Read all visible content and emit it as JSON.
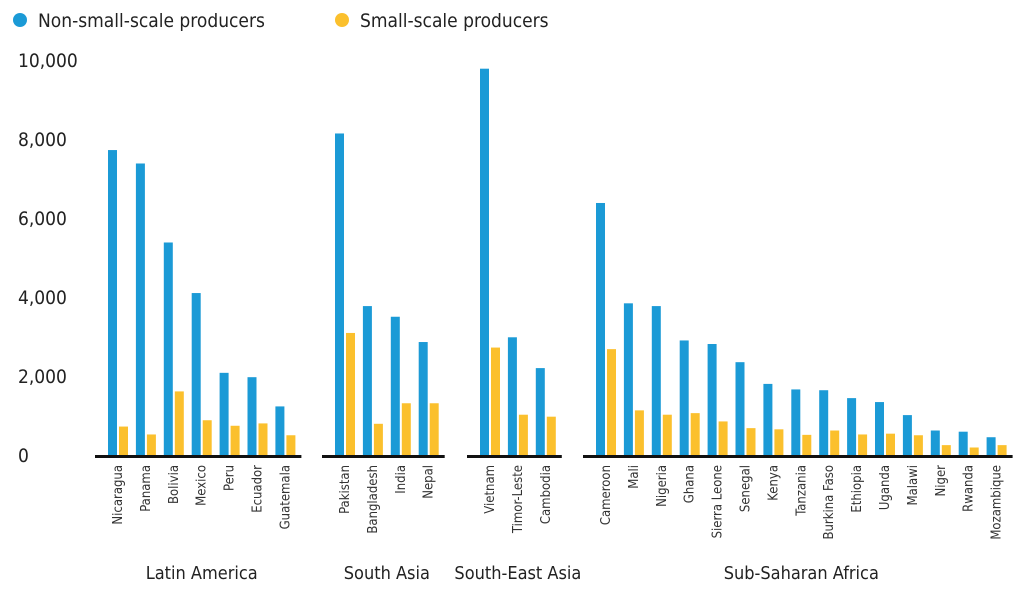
{
  "chart_data": {
    "type": "bar",
    "title": "",
    "xlabel": "",
    "ylabel": "",
    "ylim": [
      0,
      10000
    ],
    "yticks": [
      0,
      2000,
      4000,
      6000,
      8000,
      10000
    ],
    "ytick_labels": [
      "0",
      "2,000",
      "4,000",
      "6,000",
      "8,000",
      "10,000"
    ],
    "grid": false,
    "legend_position": "top-left",
    "series": [
      {
        "name": "Non-small-scale producers",
        "color": "#1b9ad6"
      },
      {
        "name": "Small-scale producers",
        "color": "#fbc02d"
      }
    ],
    "groups": [
      {
        "name": "Latin America",
        "categories": [
          "Nicaragua",
          "Panama",
          "Bolivia",
          "Mexico",
          "Peru",
          "Ecuador",
          "Guatemala"
        ],
        "non_small": [
          7720,
          7380,
          5380,
          4100,
          2080,
          1970,
          1230
        ],
        "small": [
          720,
          520,
          1610,
          880,
          740,
          800,
          500
        ]
      },
      {
        "name": "South Asia",
        "categories": [
          "Pakistan",
          "Bangladesh",
          "India",
          "Nepal"
        ],
        "non_small": [
          8140,
          3770,
          3500,
          2860
        ],
        "small": [
          3090,
          790,
          1310,
          1310
        ]
      },
      {
        "name": "South-East Asia",
        "categories": [
          "Vietnam",
          "Timor-Leste",
          "Cambodia"
        ],
        "non_small": [
          9780,
          2980,
          2200
        ],
        "small": [
          2720,
          1020,
          970
        ]
      },
      {
        "name": "Sub-Saharan Africa",
        "categories": [
          "Cameroon",
          "Mali",
          "Nigeria",
          "Ghana",
          "Sierra Leone",
          "Senegal",
          "Kenya",
          "Tanzania",
          "Burkina Faso",
          "Ethiopia",
          "Uganda",
          "Malawi",
          "Niger",
          "Rwanda",
          "Mozambique"
        ],
        "non_small": [
          6380,
          3840,
          3770,
          2900,
          2810,
          2350,
          1800,
          1660,
          1640,
          1440,
          1340,
          1010,
          620,
          590,
          450
        ],
        "small": [
          2680,
          1130,
          1020,
          1060,
          850,
          680,
          650,
          510,
          620,
          520,
          540,
          500,
          250,
          190,
          250
        ]
      }
    ]
  }
}
